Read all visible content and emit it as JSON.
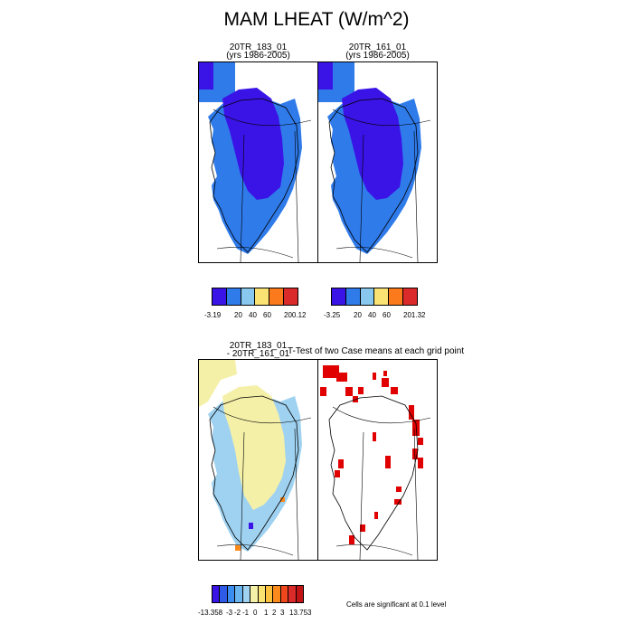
{
  "title": "MAM LHEAT (W/m^2)",
  "panels": {
    "p1": {
      "line1": "20TR_183_01",
      "line2": "(yrs 1986-2005)"
    },
    "p2": {
      "line1": "20TR_161_01",
      "line2": "(yrs 1986-2005)"
    },
    "p3": {
      "line1": "20TR_183_01",
      "line2": "- 20TR_161_01"
    },
    "p4": {
      "line1": "T-Test of two Case means at each grid point"
    }
  },
  "colorbars": {
    "top_left": {
      "colors": [
        "#3a14e6",
        "#2f7bea",
        "#88c8ef",
        "#fbe373",
        "#fb7a1c",
        "#da2a2a"
      ],
      "labels": [
        "-3.19",
        "20",
        "40",
        "60",
        "200.12"
      ]
    },
    "top_right": {
      "colors": [
        "#3a14e6",
        "#2f7bea",
        "#88c8ef",
        "#fbe373",
        "#fb7a1c",
        "#da2a2a"
      ],
      "labels": [
        "-3.25",
        "20",
        "40",
        "60",
        "201.32"
      ]
    },
    "bottom": {
      "colors": [
        "#3a14e6",
        "#2f5ae6",
        "#3b8ef0",
        "#6cb6f0",
        "#9fd2f0",
        "#f5f0a8",
        "#fbe373",
        "#fbc13f",
        "#fb8a1c",
        "#f0481c",
        "#da2a2a",
        "#c21414"
      ],
      "labels": [
        "-13.358",
        "-3",
        "-2",
        "-1",
        "0",
        "1",
        "2",
        "3",
        "13.753"
      ]
    }
  },
  "significance_note": "Cells are significant at 0.1 level",
  "chart_data": [
    {
      "type": "heatmap",
      "title": "20TR_183_01 (yrs 1986-2005)",
      "variable": "MAM LHEAT",
      "units": "W/m^2",
      "range": [
        -3.19,
        200.12
      ],
      "contour_levels": [
        20,
        40,
        60
      ],
      "pattern": "interior ice sheet in the lowest bin (<20); coastal margin 20-40; extreme north coast in the lowest bin"
    },
    {
      "type": "heatmap",
      "title": "20TR_161_01 (yrs 1986-2005)",
      "variable": "MAM LHEAT",
      "units": "W/m^2",
      "range": [
        -3.25,
        201.32
      ],
      "contour_levels": [
        20,
        40,
        60
      ],
      "pattern": "nearly identical to 20TR_183_01"
    },
    {
      "type": "heatmap",
      "title": "20TR_183_01 - 20TR_161_01",
      "variable": "MAM LHEAT difference",
      "units": "W/m^2",
      "range": [
        -13.358,
        13.753
      ],
      "contour_levels": [
        -3,
        -2,
        -1,
        0,
        1,
        2,
        3
      ],
      "pattern": "mostly 0 to 1 over the ice sheet; -1 to 0 along west and south margins; isolated small extremes near the southeast and southern tip"
    },
    {
      "type": "heatmap",
      "title": "T-Test of two Case means at each grid point",
      "note": "Cells are significant at 0.1 level",
      "pattern": "scattered significant cells mainly along the north coast and east coast, a few on the west and south"
    }
  ]
}
